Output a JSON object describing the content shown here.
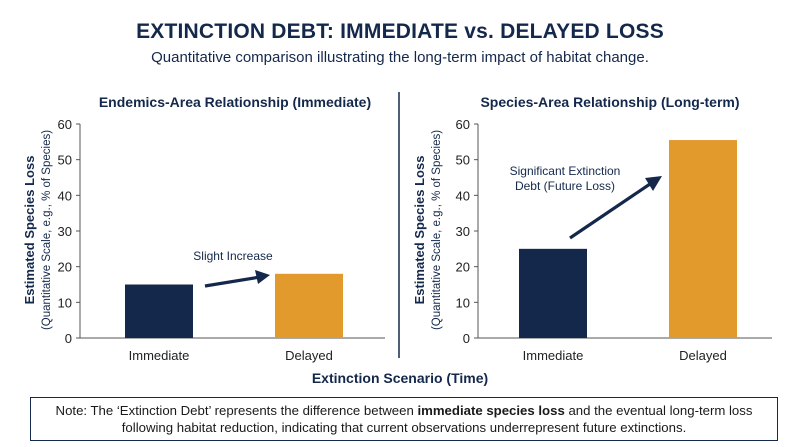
{
  "title": "EXTINCTION DEBT: IMMEDIATE vs. DELAYED LOSS",
  "subtitle": "Quantitative comparison illustrating the long-term impact of habitat change.",
  "colors": {
    "navy": "#14284b",
    "gold": "#e39a2d",
    "axis": "#555555"
  },
  "chart_data": [
    {
      "type": "bar",
      "title": "Endemics-Area Relationship (Immediate)",
      "categories": [
        "Immediate",
        "Delayed"
      ],
      "values": [
        15,
        18
      ],
      "ylabel": "Estimated Species Loss",
      "ylabel_sub": "(Quantitative Scale, e.g., % of Species)",
      "ylim": [
        0,
        60
      ],
      "yticks": [
        "0",
        "10",
        "20",
        "30",
        "40",
        "50",
        "60"
      ],
      "annotation": "Slight Increase"
    },
    {
      "type": "bar",
      "title": "Species-Area Relationship (Long-term)",
      "categories": [
        "Immediate",
        "Delayed"
      ],
      "values": [
        25,
        55.5
      ],
      "ylabel": "Estimated Species Loss",
      "ylabel_sub": "(Quantitative Scale, e.g., % of Species)",
      "ylim": [
        0,
        60
      ],
      "yticks": [
        "0",
        "10",
        "20",
        "30",
        "40",
        "50",
        "60"
      ],
      "annotation_lines": [
        "Significant Extinction",
        "Debt (Future Loss)"
      ]
    }
  ],
  "xlabel": "Extinction Scenario (Time)",
  "note": {
    "before": "Note: The ‘Extinction Debt’ represents the difference between ",
    "bold": "immediate species loss",
    "after": " and the eventual long-term loss following habitat reduction, indicating that current observations underrepresent future extinctions."
  }
}
